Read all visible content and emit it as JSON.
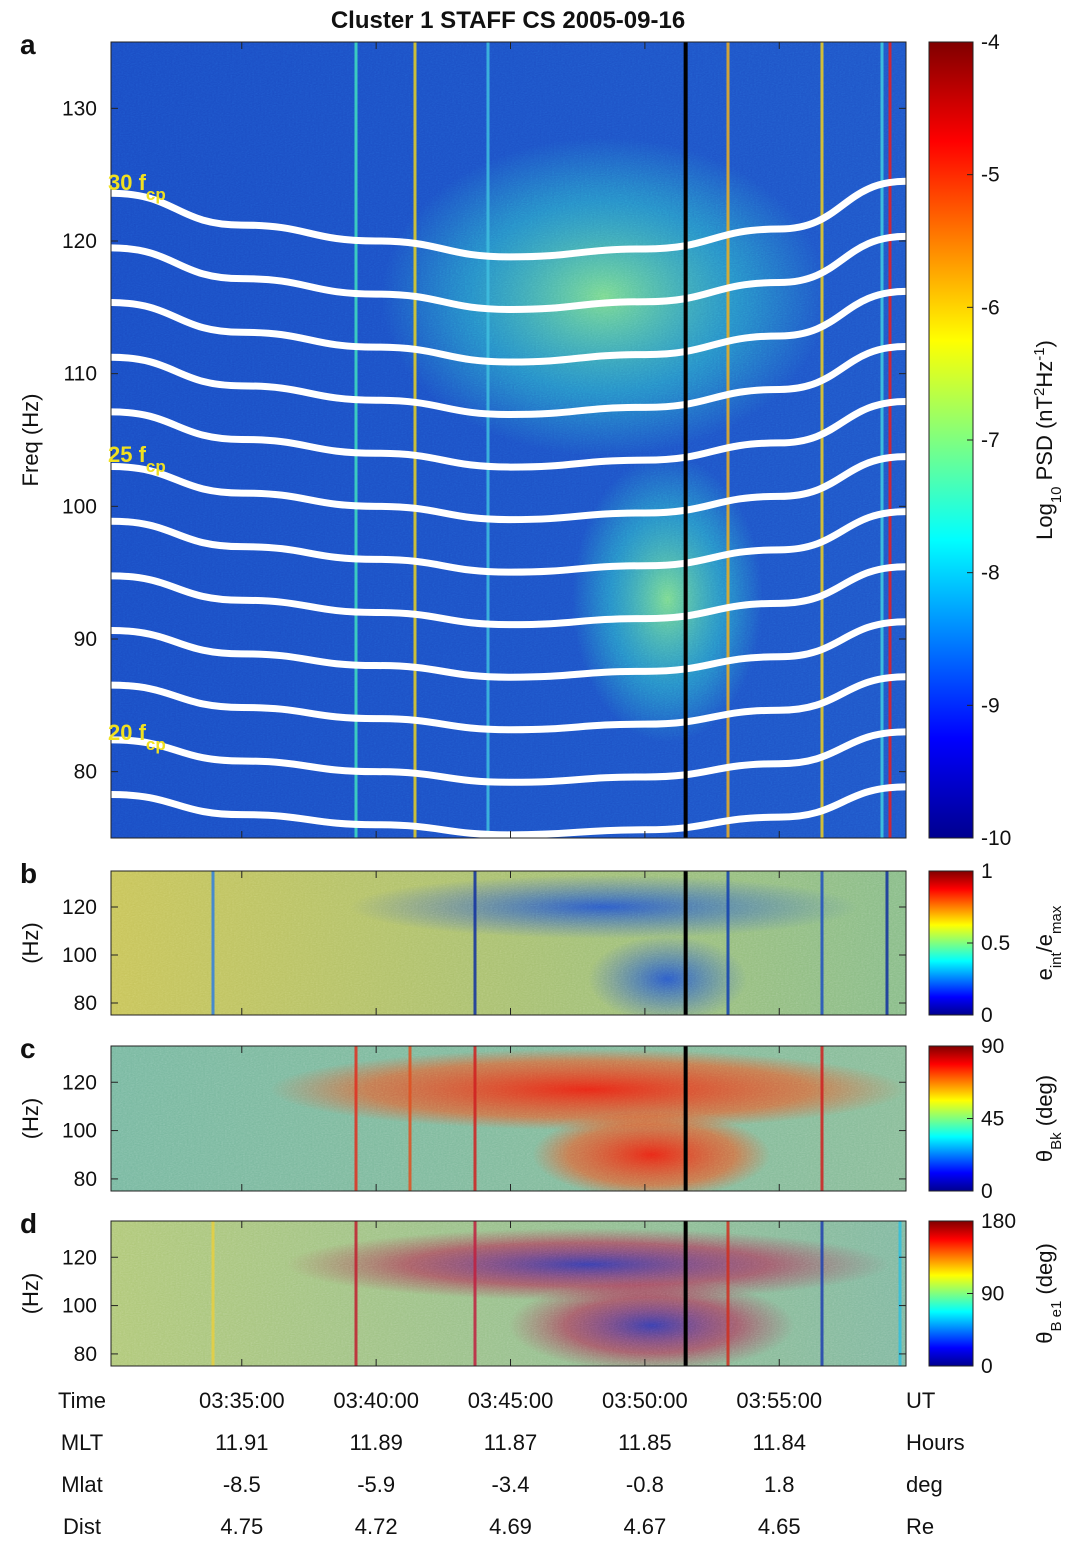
{
  "title": "Cluster 1 STAFF CS 2005-09-16",
  "chart_data": [
    {
      "type": "heatmap",
      "panel_label": "a",
      "ylabel": "Freq (Hz)",
      "xlim": [
        "03:30:08",
        "03:59:43"
      ],
      "xticks": [
        "03:35:00",
        "03:40:00",
        "03:45:00",
        "03:50:00",
        "03:55:00"
      ],
      "ylim": [
        75,
        135
      ],
      "yticks": [
        80,
        90,
        100,
        110,
        120,
        130
      ],
      "colorbar": {
        "label": [
          "Log",
          "10",
          " PSD (nT",
          "2",
          "Hz",
          "-1",
          ")"
        ],
        "lim": [
          -10,
          -4
        ],
        "ticks": [
          -10,
          -9,
          -8,
          -7,
          -6,
          -5,
          -4
        ]
      },
      "fcp": {
        "x": [
          "03:30:08",
          "03:35:00",
          "03:40:00",
          "03:45:00",
          "03:50:00",
          "03:55:00",
          "03:59:43"
        ],
        "values": [
          4.12,
          4.04,
          4.0,
          3.96,
          3.98,
          4.03,
          4.15
        ]
      },
      "harmonics": [
        19,
        20,
        21,
        22,
        23,
        24,
        25,
        26,
        27,
        28,
        29,
        30
      ],
      "annotations": [
        [
          "30 f",
          "cp"
        ],
        [
          "25 f",
          "cp"
        ],
        [
          "20 f",
          "cp"
        ]
      ],
      "marker_time": "03:51:31"
    },
    {
      "type": "heatmap",
      "panel_label": "b",
      "ylabel": "(Hz)",
      "xlim": [
        "03:30:08",
        "03:59:43"
      ],
      "xticks": [
        "03:35:00",
        "03:40:00",
        "03:45:00",
        "03:50:00",
        "03:55:00"
      ],
      "ylim": [
        75,
        135
      ],
      "yticks": [
        80,
        100,
        120
      ],
      "colorbar": {
        "label": [
          "e",
          "int",
          "/e",
          "max"
        ],
        "lim": [
          0,
          1
        ],
        "ticks": [
          0,
          0.5,
          1
        ]
      },
      "marker_time": "03:51:31"
    },
    {
      "type": "heatmap",
      "panel_label": "c",
      "ylabel": "(Hz)",
      "xlim": [
        "03:30:08",
        "03:59:43"
      ],
      "xticks": [
        "03:35:00",
        "03:40:00",
        "03:45:00",
        "03:50:00",
        "03:55:00"
      ],
      "ylim": [
        75,
        135
      ],
      "yticks": [
        80,
        100,
        120
      ],
      "colorbar": {
        "label": [
          "θ",
          "Bk",
          " (deg)"
        ],
        "lim": [
          0,
          90
        ],
        "ticks": [
          0,
          45,
          90
        ]
      },
      "marker_time": "03:51:31"
    },
    {
      "type": "heatmap",
      "panel_label": "d",
      "ylabel": "(Hz)",
      "xlim": [
        "03:30:08",
        "03:59:43"
      ],
      "xticks": [
        "03:35:00",
        "03:40:00",
        "03:45:00",
        "03:50:00",
        "03:55:00"
      ],
      "ylim": [
        75,
        135
      ],
      "yticks": [
        80,
        100,
        120
      ],
      "colorbar": {
        "label": [
          "θ",
          "B e1",
          " (deg)"
        ],
        "lim": [
          0,
          180
        ],
        "ticks": [
          0,
          90,
          180
        ]
      },
      "marker_time": "03:51:31"
    }
  ],
  "x_axis_table": {
    "rows": [
      {
        "name": "Time",
        "unit": "UT"
      },
      {
        "name": "MLT",
        "values": [
          11.91,
          11.89,
          11.87,
          11.85,
          11.84
        ],
        "unit": "Hours"
      },
      {
        "name": "Mlat",
        "values": [
          -8.5,
          -5.9,
          -3.4,
          -0.8,
          1.8
        ],
        "unit": "deg"
      },
      {
        "name": "Dist",
        "values": [
          4.75,
          4.72,
          4.69,
          4.67,
          4.65
        ],
        "unit": "Re"
      }
    ]
  }
}
